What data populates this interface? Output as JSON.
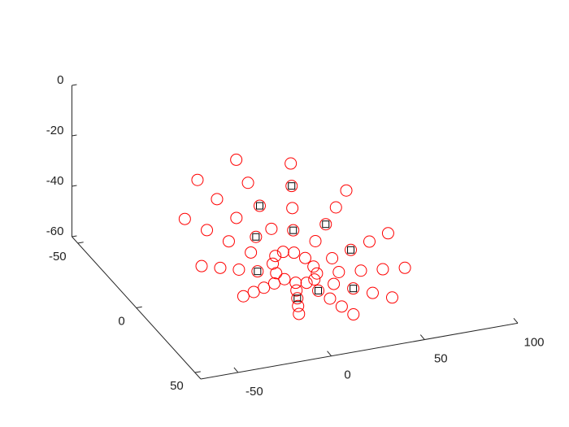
{
  "chart_data": {
    "type": "scatter3d",
    "xlim": [
      -70,
      100
    ],
    "xticks": [
      -50,
      0,
      50,
      100
    ],
    "ylim": [
      -55,
      55
    ],
    "yticks": [
      -50,
      0,
      50
    ],
    "zlim": [
      -60,
      0
    ],
    "zticks": [
      0,
      -20,
      -40,
      -60
    ],
    "series": [
      {
        "color": "#ff0000",
        "marker": "o",
        "x": [
          25,
          23.7,
          20,
          15,
          10,
          6.3,
          5,
          6.3,
          10,
          15,
          20,
          23.7,
          35,
          32.3,
          25,
          15,
          5,
          -2.3,
          -5,
          -2.3,
          5,
          15,
          25,
          32.3,
          45,
          41,
          30,
          15,
          0,
          -11,
          -15,
          -11,
          0,
          15,
          30,
          41,
          55,
          49.6,
          35,
          15,
          -5,
          -19.6,
          -25,
          -19.6,
          -5,
          15,
          35,
          49.6,
          65,
          58.3,
          40,
          15,
          -10,
          -28.3,
          -35,
          -28.3,
          -10,
          15,
          40,
          58.3
        ],
        "y": [
          0,
          5,
          8.7,
          10,
          8.7,
          5,
          0,
          -5,
          -8.7,
          -10,
          -8.7,
          -5,
          0,
          10,
          17.3,
          20,
          17.3,
          10,
          0,
          -10,
          -17.3,
          -20,
          -17.3,
          -10,
          0,
          15,
          26,
          30,
          26,
          15,
          0,
          -15,
          -26,
          -30,
          -26,
          -15,
          0,
          20,
          34.6,
          40,
          34.6,
          20,
          0,
          -20,
          -34.6,
          -40,
          -34.6,
          -20,
          0,
          25,
          43.3,
          50,
          43.3,
          25,
          0,
          -25,
          -43.3,
          -50,
          -43.3,
          -25
        ],
        "z": [
          -56,
          -56,
          -56,
          -56,
          -56,
          -56,
          -56,
          -55,
          -54.3,
          -54,
          -54.3,
          -55,
          -54,
          -54,
          -54,
          -54,
          -54,
          -54,
          -54,
          -52,
          -50.5,
          -50,
          -50.5,
          -52,
          -52,
          -52,
          -52,
          -52,
          -52,
          -52,
          -52,
          -49,
          -46.8,
          -46,
          -46.8,
          -49,
          -50,
          -50,
          -50,
          -50,
          -50,
          -50,
          -50,
          -46,
          -43.1,
          -42,
          -43.1,
          -46,
          -48,
          -48,
          -48,
          -48,
          -48,
          -48,
          -48,
          -43,
          -39.3,
          -38,
          -39.3,
          -43
        ]
      },
      {
        "color": "#000000",
        "marker": "s",
        "x": [
          15,
          25,
          35,
          5,
          -5,
          45,
          15,
          30,
          0,
          41
        ],
        "y": [
          -30,
          -17.3,
          -34.6,
          -17.3,
          0,
          0,
          20,
          26,
          26,
          -15
        ],
        "z": [
          -46,
          -50.5,
          -43.1,
          -50.5,
          -54,
          -52,
          -54,
          -52,
          -52,
          -49
        ]
      }
    ]
  }
}
